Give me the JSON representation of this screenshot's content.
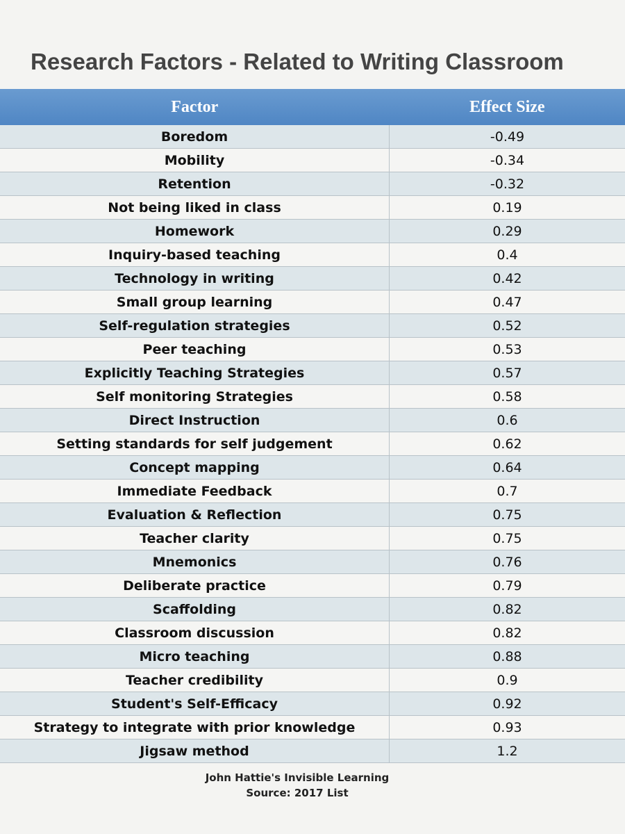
{
  "header": {
    "title": "Research Factors - Related to Writing Classroom"
  },
  "table": {
    "columns": [
      "Factor",
      "Effect Size"
    ],
    "rows": [
      [
        "Boredom",
        "-0.49"
      ],
      [
        "Mobility",
        "-0.34"
      ],
      [
        "Retention",
        "-0.32"
      ],
      [
        "Not being liked in class",
        "0.19"
      ],
      [
        "Homework",
        "0.29"
      ],
      [
        "Inquiry-based teaching",
        "0.4"
      ],
      [
        "Technology in writing",
        "0.42"
      ],
      [
        "Small group learning",
        "0.47"
      ],
      [
        "Self-regulation strategies",
        "0.52"
      ],
      [
        "Peer teaching",
        "0.53"
      ],
      [
        "Explicitly Teaching Strategies",
        "0.57"
      ],
      [
        "Self monitoring Strategies",
        "0.58"
      ],
      [
        "Direct Instruction",
        "0.6"
      ],
      [
        "Setting standards for self judgement",
        "0.62"
      ],
      [
        "Concept mapping",
        "0.64"
      ],
      [
        "Immediate Feedback",
        "0.7"
      ],
      [
        "Evaluation & Reflection",
        "0.75"
      ],
      [
        "Teacher clarity",
        "0.75"
      ],
      [
        "Mnemonics",
        "0.76"
      ],
      [
        "Deliberate practice",
        "0.79"
      ],
      [
        "Scaffolding",
        "0.82"
      ],
      [
        "Classroom discussion",
        "0.82"
      ],
      [
        "Micro teaching",
        "0.88"
      ],
      [
        "Teacher credibility",
        "0.9"
      ],
      [
        "Student's Self-Efficacy",
        "0.92"
      ],
      [
        "Strategy to integrate with prior knowledge",
        "0.93"
      ],
      [
        "Jigsaw method",
        "1.2"
      ]
    ]
  },
  "footer": {
    "lines": [
      "John Hattie's Invisible Learning",
      "Source: 2017 List"
    ]
  }
}
